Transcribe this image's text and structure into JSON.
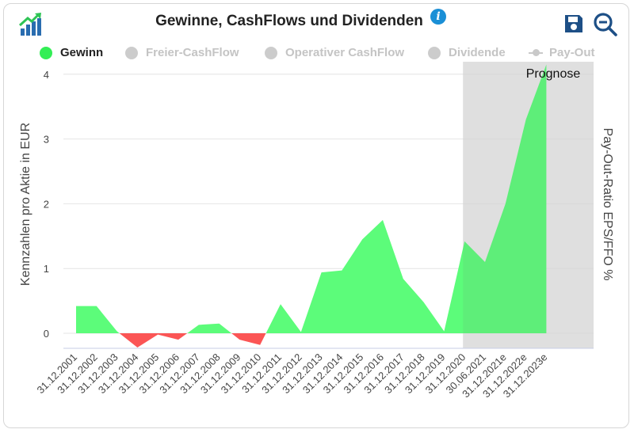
{
  "header": {
    "title": "Gewinne, CashFlows und Dividenden",
    "info_icon": "info-icon",
    "logo_icon": "chart-growth-icon",
    "save_icon": "save-icon",
    "zoom_icon": "zoom-icon"
  },
  "legend": [
    {
      "label": "Gewinn",
      "color": "#33ee55",
      "active": true,
      "marker": "dot"
    },
    {
      "label": "Freier-CashFlow",
      "color": "#cccccc",
      "active": false,
      "marker": "dot"
    },
    {
      "label": "Operativer CashFlow",
      "color": "#cccccc",
      "active": false,
      "marker": "dot"
    },
    {
      "label": "Dividende",
      "color": "#cccccc",
      "active": false,
      "marker": "dot"
    },
    {
      "label": "Pay-Out",
      "color": "#cccccc",
      "active": false,
      "marker": "line"
    }
  ],
  "colors": {
    "positive": "#5cfc7a",
    "negative": "#fb5555",
    "forecast_band": "#ebebeb",
    "grid": "#e4e4e4"
  },
  "chart_data": {
    "type": "area",
    "title": "Gewinne, CashFlows und Dividenden",
    "ylabel": "Kennzahlen pro Aktie in EUR",
    "ylabel_right": "Pay-Out-Ratio EPS/FFO %",
    "ylim": [
      -0.3,
      4.2
    ],
    "yticks": [
      0,
      1,
      2,
      3,
      4
    ],
    "grid": true,
    "legend_position": "top",
    "forecast_label": "Prognose",
    "forecast_start_index": 19,
    "categories": [
      "31.12.2001",
      "31.12.2002",
      "31.12.2003",
      "31.12.2004",
      "31.12.2005",
      "31.12.2006",
      "31.12.2007",
      "31.12.2008",
      "31.12.2009",
      "31.12.2010",
      "31.12.2011",
      "31.12.2012",
      "31.12.2013",
      "31.12.2014",
      "31.12.2015",
      "31.12.2016",
      "31.12.2017",
      "31.12.2018",
      "31.12.2019",
      "31.12.2020",
      "30.06.2021",
      "31.12.2021e",
      "31.12.2022e",
      "31.12.2023e"
    ],
    "series": [
      {
        "name": "Gewinn",
        "values": [
          0.42,
          0.42,
          0.03,
          -0.22,
          -0.02,
          -0.1,
          0.13,
          0.15,
          -0.1,
          -0.18,
          0.45,
          0.02,
          0.94,
          0.97,
          1.45,
          1.75,
          0.84,
          0.48,
          0.03,
          1.42,
          1.1,
          2.0,
          3.3,
          4.15
        ]
      }
    ]
  }
}
